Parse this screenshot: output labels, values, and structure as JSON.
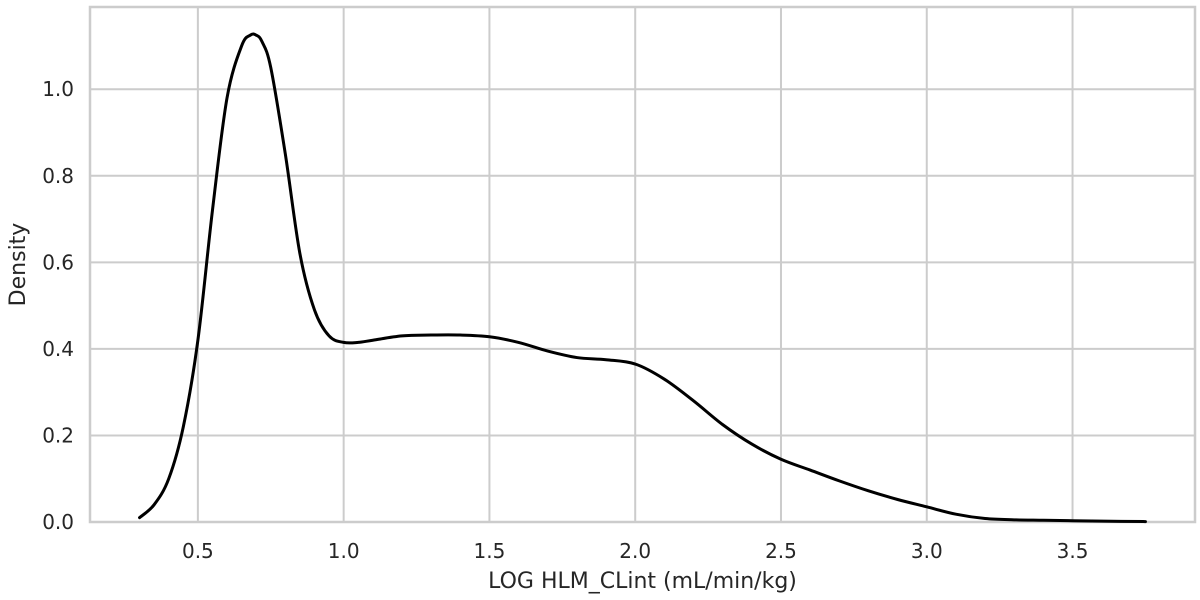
{
  "chart_data": {
    "type": "line",
    "title": "",
    "xlabel": "LOG HLM_CLint (mL/min/kg)",
    "ylabel": "Density",
    "xlim": [
      0.13,
      3.92
    ],
    "ylim": [
      0.0,
      1.19
    ],
    "xticks": [
      0.5,
      1.0,
      1.5,
      2.0,
      2.5,
      3.0,
      3.5
    ],
    "xtick_labels": [
      "0.5",
      "1.0",
      "1.5",
      "2.0",
      "2.5",
      "3.0",
      "3.5"
    ],
    "yticks": [
      0.0,
      0.2,
      0.4,
      0.6,
      0.8,
      1.0
    ],
    "ytick_labels": [
      "0.0",
      "0.2",
      "0.4",
      "0.6",
      "0.8",
      "1.0"
    ],
    "grid": true,
    "legend": "none",
    "series": [
      {
        "color": "#000000",
        "x": [
          0.3,
          0.35,
          0.4,
          0.45,
          0.5,
          0.55,
          0.6,
          0.65,
          0.68,
          0.7,
          0.72,
          0.75,
          0.8,
          0.85,
          0.9,
          0.95,
          1.0,
          1.05,
          1.1,
          1.2,
          1.3,
          1.4,
          1.5,
          1.6,
          1.7,
          1.8,
          1.9,
          2.0,
          2.1,
          2.2,
          2.3,
          2.4,
          2.5,
          2.6,
          2.7,
          2.8,
          2.9,
          3.0,
          3.1,
          3.2,
          3.3,
          3.4,
          3.5,
          3.6,
          3.75
        ],
        "y": [
          0.01,
          0.04,
          0.1,
          0.22,
          0.42,
          0.72,
          0.98,
          1.1,
          1.125,
          1.125,
          1.11,
          1.05,
          0.85,
          0.62,
          0.49,
          0.43,
          0.415,
          0.415,
          0.42,
          0.43,
          0.432,
          0.432,
          0.428,
          0.415,
          0.395,
          0.38,
          0.375,
          0.365,
          0.33,
          0.28,
          0.225,
          0.18,
          0.145,
          0.12,
          0.095,
          0.072,
          0.052,
          0.035,
          0.018,
          0.008,
          0.005,
          0.004,
          0.003,
          0.002,
          0.001
        ]
      }
    ]
  }
}
